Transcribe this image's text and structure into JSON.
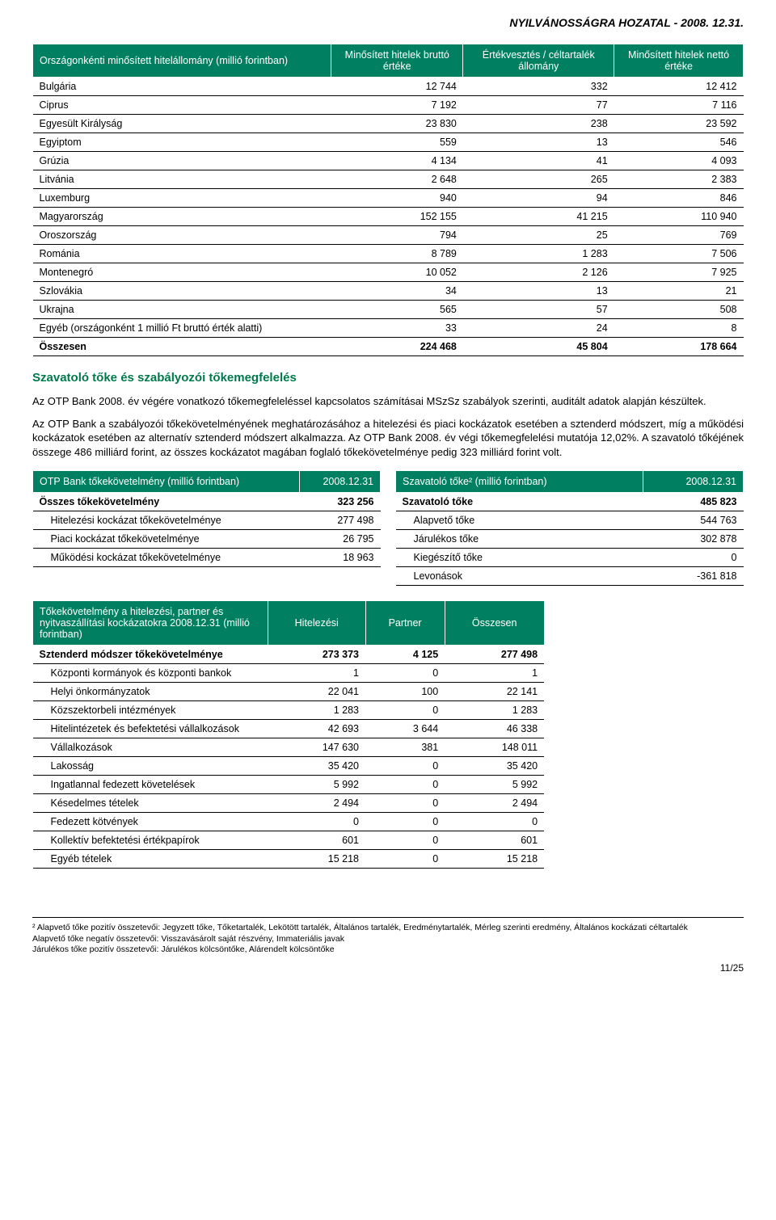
{
  "header": "NYILVÁNOSSÁGRA HOZATAL - 2008. 12.31.",
  "table1": {
    "headers": [
      "Országonkénti minősített hitelállomány (millió forintban)",
      "Minősített hitelek bruttó értéke",
      "Értékvesztés / céltartalék állomány",
      "Minősített hitelek nettó értéke"
    ],
    "rows": [
      [
        "Bulgária",
        "12 744",
        "332",
        "12 412"
      ],
      [
        "Ciprus",
        "7 192",
        "77",
        "7 116"
      ],
      [
        "Egyesült Királyság",
        "23 830",
        "238",
        "23 592"
      ],
      [
        "Egyiptom",
        "559",
        "13",
        "546"
      ],
      [
        "Grúzia",
        "4 134",
        "41",
        "4 093"
      ],
      [
        "Litvánia",
        "2 648",
        "265",
        "2 383"
      ],
      [
        "Luxemburg",
        "940",
        "94",
        "846"
      ],
      [
        "Magyarország",
        "152 155",
        "41 215",
        "110 940"
      ],
      [
        "Oroszország",
        "794",
        "25",
        "769"
      ],
      [
        "Románia",
        "8 789",
        "1 283",
        "7 506"
      ],
      [
        "Montenegró",
        "10 052",
        "2 126",
        "7 925"
      ],
      [
        "Szlovákia",
        "34",
        "13",
        "21"
      ],
      [
        "Ukrajna",
        "565",
        "57",
        "508"
      ],
      [
        "Egyéb (országonként 1 millió Ft bruttó érték alatti)",
        "33",
        "24",
        "8"
      ]
    ],
    "total": [
      "Összesen",
      "224 468",
      "45 804",
      "178 664"
    ]
  },
  "section_title": "Szavatoló tőke és szabályozói tőkemegfelelés",
  "para1": "Az OTP Bank 2008. év végére vonatkozó tőkemegfeleléssel kapcsolatos számításai MSzSz szabályok szerinti, auditált adatok alapján készültek.",
  "para2": "Az OTP Bank a szabályozói tőkekövetelményének meghatározásához a hitelezési és piaci kockázatok esetében a sztenderd módszert, míg a működési kockázatok esetében az alternatív sztenderd módszert alkalmazza. Az OTP Bank 2008. év végi tőkemegfelelési mutatója 12,02%. A szavatoló tőkéjének összege 486 milliárd forint, az összes kockázatot magában foglaló tőkekövetelménye pedig 323 milliárd forint volt.",
  "table2a": {
    "header": [
      "OTP Bank tőkekövetelmény (millió forintban)",
      "2008.12.31"
    ],
    "rows": [
      {
        "b": true,
        "c": [
          "Összes tőkekövetelmény",
          "323 256"
        ]
      },
      {
        "indent": true,
        "c": [
          "Hitelezési kockázat tőkekövetelménye",
          "277 498"
        ]
      },
      {
        "indent": true,
        "c": [
          "Piaci kockázat tőkekövetelménye",
          "26 795"
        ]
      },
      {
        "indent": true,
        "c": [
          "Működési kockázat tőkekövetelménye",
          "18 963"
        ]
      }
    ]
  },
  "table2b": {
    "header": [
      "Szavatoló tőke² (millió forintban)",
      "2008.12.31"
    ],
    "rows": [
      {
        "b": true,
        "c": [
          "Szavatoló tőke",
          "485 823"
        ]
      },
      {
        "indent": true,
        "c": [
          "Alapvető tőke",
          "544 763"
        ]
      },
      {
        "indent": true,
        "c": [
          "Járulékos tőke",
          "302 878"
        ]
      },
      {
        "indent": true,
        "c": [
          "Kiegészítő tőke",
          "0"
        ]
      },
      {
        "indent": true,
        "c": [
          "Levonások",
          "-361 818"
        ]
      }
    ]
  },
  "table3": {
    "headers": [
      "Tőkekövetelmény a hitelezési, partner és nyitvaszállítási kockázatokra 2008.12.31 (millió forintban)",
      "Hitelezési",
      "Partner",
      "Összesen"
    ],
    "total": [
      "Sztenderd módszer tőkekövetelménye",
      "273 373",
      "4 125",
      "277 498"
    ],
    "rows": [
      [
        "Központi kormányok és központi bankok",
        "1",
        "0",
        "1"
      ],
      [
        "Helyi önkormányzatok",
        "22 041",
        "100",
        "22 141"
      ],
      [
        "Közszektorbeli intézmények",
        "1 283",
        "0",
        "1 283"
      ],
      [
        "Hitelintézetek és befektetési vállalkozások",
        "42 693",
        "3 644",
        "46 338"
      ],
      [
        "Vállalkozások",
        "147 630",
        "381",
        "148 011"
      ],
      [
        "Lakosság",
        "35 420",
        "0",
        "35 420"
      ],
      [
        "Ingatlannal fedezett követelések",
        "5 992",
        "0",
        "5 992"
      ],
      [
        "Késedelmes tételek",
        "2 494",
        "0",
        "2 494"
      ],
      [
        "Fedezett kötvények",
        "0",
        "0",
        "0"
      ],
      [
        "Kollektív befektetési értékpapírok",
        "601",
        "0",
        "601"
      ],
      [
        "Egyéb tételek",
        "15 218",
        "0",
        "15 218"
      ]
    ]
  },
  "footnote": {
    "l1": "² Alapvető tőke pozitív összetevői: Jegyzett tőke, Tőketartalék, Lekötött tartalék, Általános tartalék, Eredménytartalék, Mérleg szerinti eredmény, Általános kockázati céltartalék",
    "l2": "Alapvető tőke negatív összetevői: Visszavásárolt saját részvény, Immateriális javak",
    "l3": "Járulékos tőke pozitív összetevői: Járulékos kölcsöntőke, Alárendelt kölcsöntőke"
  },
  "pagenum": "11/25"
}
